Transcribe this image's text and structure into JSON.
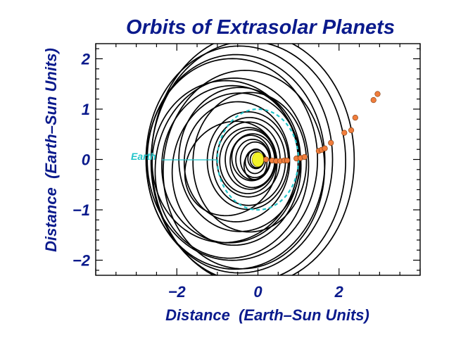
{
  "chart_data": {
    "type": "orbit-scatter",
    "title": "Orbits of Extrasolar Planets",
    "xlabel": "Distance  (Earth–Sun Units)",
    "ylabel": "Distance  (Earth–Sun Units)",
    "xlim": [
      -4.0,
      4.0
    ],
    "ylim": [
      -2.3,
      2.3
    ],
    "xticks": [
      -2,
      0,
      2
    ],
    "xtick_labels": [
      "−2",
      "0",
      "2"
    ],
    "yticks": [
      -2,
      -1,
      0,
      1,
      2
    ],
    "ytick_labels": [
      "−2",
      "−1",
      "0",
      "1",
      "2"
    ],
    "grid": false,
    "colors": {
      "text": "#0a1a8c",
      "orbit": "#000000",
      "planet": "#f07d3c",
      "earth_orbit": "#21c4c9",
      "star": "#f2f22a"
    },
    "star": {
      "x": 0,
      "y": 0
    },
    "earth_label": "Earth",
    "earth_orbit_radius": 1.0,
    "orbits": [
      {
        "a": 0.06,
        "e": 0.0,
        "omega": 0
      },
      {
        "a": 0.09,
        "e": 0.1,
        "omega": 20
      },
      {
        "a": 0.12,
        "e": 0.15,
        "omega": 45
      },
      {
        "a": 0.16,
        "e": 0.2,
        "omega": 10
      },
      {
        "a": 0.2,
        "e": 0.25,
        "omega": -15
      },
      {
        "a": 0.25,
        "e": 0.3,
        "omega": 30
      },
      {
        "a": 0.3,
        "e": 0.4,
        "omega": 60
      },
      {
        "a": 0.36,
        "e": 0.2,
        "omega": 5
      },
      {
        "a": 0.42,
        "e": 0.3,
        "omega": 0
      },
      {
        "a": 0.48,
        "e": 0.35,
        "omega": -10
      },
      {
        "a": 0.55,
        "e": 0.25,
        "omega": 10
      },
      {
        "a": 0.62,
        "e": 0.3,
        "omega": 0
      },
      {
        "a": 0.7,
        "e": 0.35,
        "omega": 5
      },
      {
        "a": 0.78,
        "e": 0.3,
        "omega": 0
      },
      {
        "a": 0.9,
        "e": 0.25,
        "omega": 10
      },
      {
        "a": 1.0,
        "e": 0.25,
        "omega": 5
      },
      {
        "a": 1.15,
        "e": 0.6,
        "omega": 15
      },
      {
        "a": 1.3,
        "e": 0.4,
        "omega": 5
      },
      {
        "a": 1.4,
        "e": 0.15,
        "omega": 15
      },
      {
        "a": 1.5,
        "e": 0.3,
        "omega": 0
      },
      {
        "a": 1.6,
        "e": 0.35,
        "omega": 20
      },
      {
        "a": 1.7,
        "e": 0.4,
        "omega": 8
      },
      {
        "a": 1.8,
        "e": 0.45,
        "omega": 3
      },
      {
        "a": 1.9,
        "e": 0.35,
        "omega": 15
      },
      {
        "a": 2.0,
        "e": 0.2,
        "omega": 30
      },
      {
        "a": 2.1,
        "e": 0.3,
        "omega": 0
      },
      {
        "a": 2.2,
        "e": 0.25,
        "omega": 5
      },
      {
        "a": 2.3,
        "e": 0.2,
        "omega": 0
      },
      {
        "a": 2.4,
        "e": 0.1,
        "omega": 10
      },
      {
        "a": 2.5,
        "e": 0.05,
        "omega": 0
      }
    ],
    "planets": [
      {
        "x": 0.2,
        "y": 0.0
      },
      {
        "x": 0.35,
        "y": -0.02
      },
      {
        "x": 0.45,
        "y": -0.03
      },
      {
        "x": 0.55,
        "y": -0.03
      },
      {
        "x": 0.65,
        "y": -0.02
      },
      {
        "x": 0.72,
        "y": -0.02
      },
      {
        "x": 0.95,
        "y": 0.02
      },
      {
        "x": 1.05,
        "y": 0.03
      },
      {
        "x": 1.15,
        "y": 0.05
      },
      {
        "x": 1.5,
        "y": 0.17
      },
      {
        "x": 1.57,
        "y": 0.19
      },
      {
        "x": 1.65,
        "y": 0.22
      },
      {
        "x": 1.8,
        "y": 0.33
      },
      {
        "x": 2.13,
        "y": 0.53
      },
      {
        "x": 2.3,
        "y": 0.58
      },
      {
        "x": 2.4,
        "y": 0.83
      },
      {
        "x": 2.85,
        "y": 1.18
      },
      {
        "x": 2.95,
        "y": 1.3
      }
    ]
  }
}
